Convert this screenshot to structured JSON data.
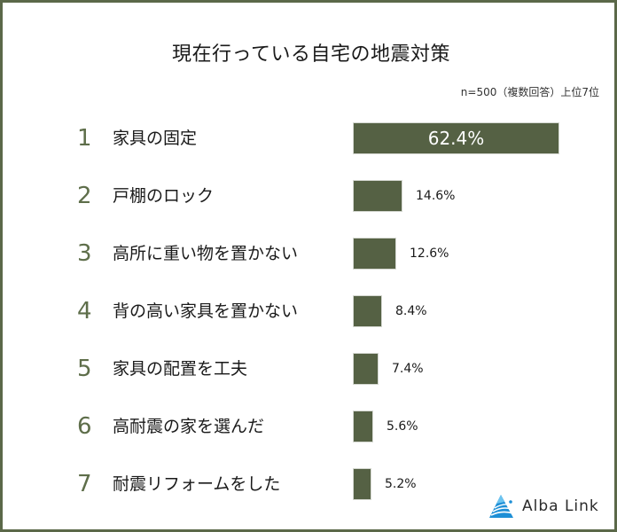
{
  "title": "現在行っている自宅の地震対策",
  "note": "n=500（複数回答）上位7位",
  "colors": {
    "frame": "#5b6849",
    "bar": "#556144",
    "rank": "#5e6e4a",
    "logo_blue": "#1e8fd6"
  },
  "chart_data": {
    "type": "bar",
    "orientation": "horizontal",
    "title": "現在行っている自宅の地震対策",
    "subtitle": "n=500（複数回答）上位7位",
    "categories": [
      "家具の固定",
      "戸棚のロック",
      "高所に重い物を置かない",
      "背の高い家具を置かない",
      "家具の配置を工夫",
      "高耐震の家を選んだ",
      "耐震リフォームをした"
    ],
    "ranks": [
      "1",
      "2",
      "3",
      "4",
      "5",
      "6",
      "7"
    ],
    "values": [
      62.4,
      14.6,
      12.6,
      8.4,
      7.4,
      5.6,
      5.2
    ],
    "value_labels": [
      "62.4%",
      "14.6%",
      "12.6%",
      "8.4%",
      "7.4%",
      "5.6%",
      "5.2%"
    ],
    "unit": "%",
    "xlabel": "",
    "ylabel": "",
    "grid": false,
    "legend": null
  },
  "rows": [
    {
      "rank": "1",
      "label": "家具の固定",
      "value": "62.4%"
    },
    {
      "rank": "2",
      "label": "戸棚のロック",
      "value": "14.6%"
    },
    {
      "rank": "3",
      "label": "高所に重い物を置かない",
      "value": "12.6%"
    },
    {
      "rank": "4",
      "label": "背の高い家具を置かない",
      "value": "8.4%"
    },
    {
      "rank": "5",
      "label": "家具の配置を工夫",
      "value": "7.4%"
    },
    {
      "rank": "6",
      "label": "高耐震の家を選んだ",
      "value": "5.6%"
    },
    {
      "rank": "7",
      "label": "耐震リフォームをした",
      "value": "5.2%"
    }
  ],
  "logo": {
    "text": "Alba Link",
    "icon": "alba-link-logo-icon"
  }
}
